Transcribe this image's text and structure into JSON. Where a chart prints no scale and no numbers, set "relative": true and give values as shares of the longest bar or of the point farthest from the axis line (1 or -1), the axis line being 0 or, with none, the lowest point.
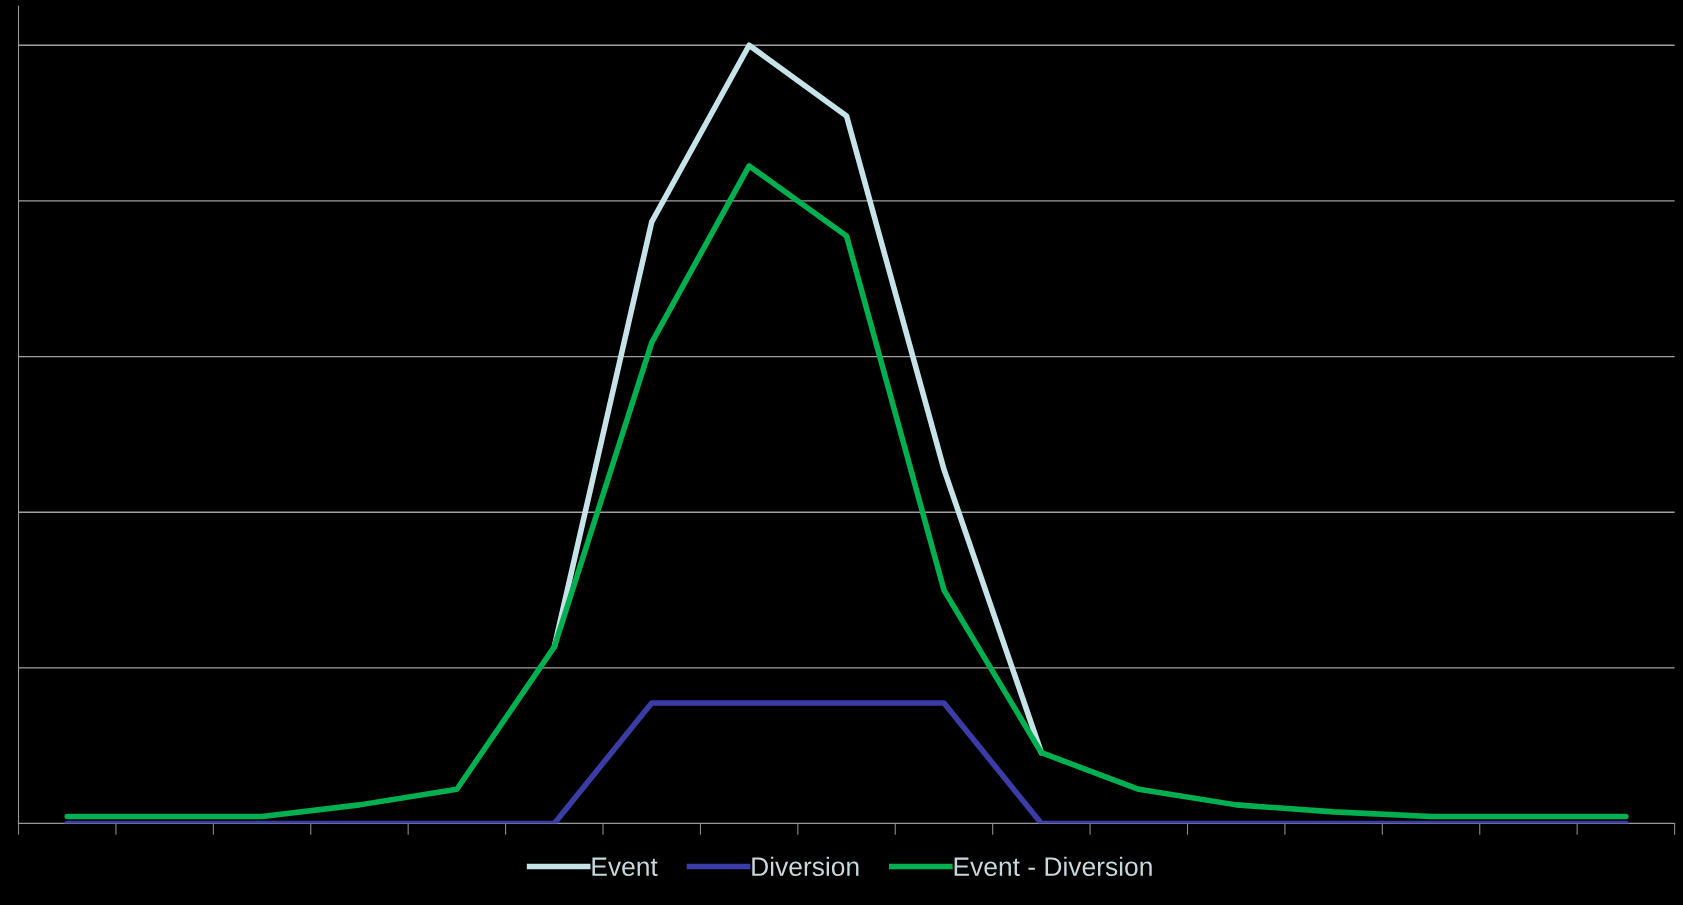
{
  "chart_data": {
    "type": "line",
    "relative": true,
    "categories": [
      null,
      null,
      null,
      null,
      null,
      null,
      null,
      null,
      null,
      null,
      null,
      null,
      null,
      null,
      null,
      null,
      null
    ],
    "series": [
      {
        "name": "Event",
        "color": "#c5e3e8",
        "values": [
          null,
          null,
          null,
          null,
          null,
          0.227,
          0.773,
          1,
          0.909,
          0.455,
          0.091,
          null,
          null,
          null,
          null,
          null,
          null
        ]
      },
      {
        "name": "Diversion",
        "color": "#3b3ca6",
        "values": [
          0,
          0,
          0,
          0,
          0,
          0,
          0.155,
          0.155,
          0.155,
          0.155,
          0,
          0,
          0,
          0,
          0,
          0,
          0
        ]
      },
      {
        "name": "Event - Diversion",
        "color": "#00b050",
        "values": [
          0.009,
          0.009,
          0.009,
          0.024,
          0.044,
          0.227,
          0.618,
          0.845,
          0.755,
          0.3,
          0.091,
          0.044,
          0.024,
          0.015,
          0.009,
          0.009,
          0.009
        ]
      }
    ],
    "grid": "y",
    "legend": "bottom",
    "marker": "none",
    "line_style": "solid"
  }
}
